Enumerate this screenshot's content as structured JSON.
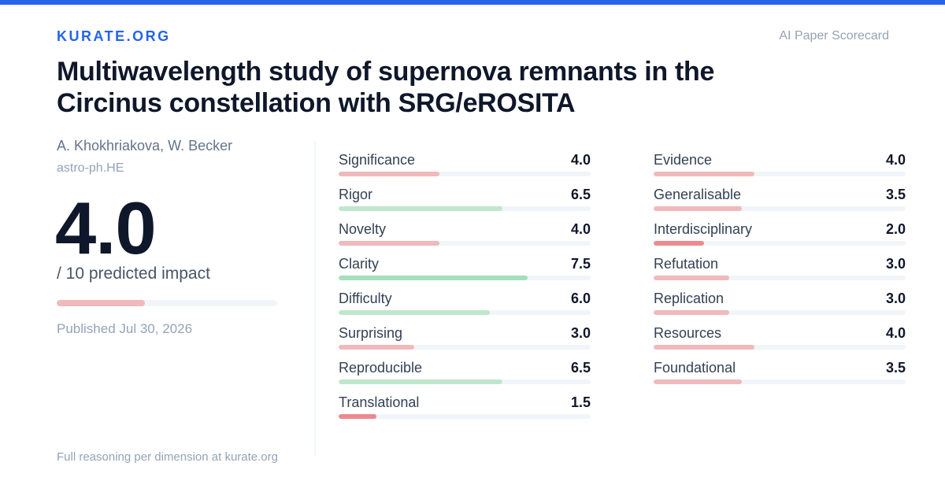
{
  "colors": {
    "accent": "#2563eb",
    "low": "#eb8a8f",
    "lowMid": "#f0b9bc",
    "high": "#a3dfbb",
    "mid": "#bfe7cc"
  },
  "brand": "KURATE.ORG",
  "tagline": "AI Paper Scorecard",
  "paper": {
    "title": "Multiwavelength study of supernova remnants in the Circinus constellation with SRG/eROSITA",
    "authors": "A. Khokhriakova, W. Becker",
    "category": "astro-ph.HE"
  },
  "score": {
    "value": "4.0",
    "caption": "/ 10 predicted impact",
    "fraction": 0.4
  },
  "published": "Published Jul 30, 2026",
  "footer": "Full reasoning per dimension at kurate.org",
  "dimensions_left": [
    {
      "label": "Significance",
      "value": "4.0"
    },
    {
      "label": "Rigor",
      "value": "6.5"
    },
    {
      "label": "Novelty",
      "value": "4.0"
    },
    {
      "label": "Clarity",
      "value": "7.5"
    },
    {
      "label": "Difficulty",
      "value": "6.0"
    },
    {
      "label": "Surprising",
      "value": "3.0"
    },
    {
      "label": "Reproducible",
      "value": "6.5"
    },
    {
      "label": "Translational",
      "value": "1.5"
    }
  ],
  "dimensions_right": [
    {
      "label": "Evidence",
      "value": "4.0"
    },
    {
      "label": "Generalisable",
      "value": "3.5"
    },
    {
      "label": "Interdisciplinary",
      "value": "2.0"
    },
    {
      "label": "Refutation",
      "value": "3.0"
    },
    {
      "label": "Replication",
      "value": "3.0"
    },
    {
      "label": "Resources",
      "value": "4.0"
    },
    {
      "label": "Foundational",
      "value": "3.5"
    }
  ]
}
